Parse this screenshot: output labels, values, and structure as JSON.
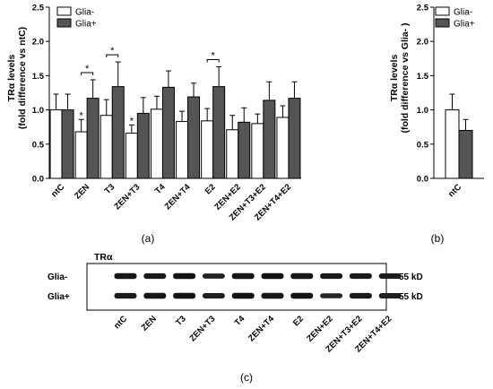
{
  "chart_data": [
    {
      "type": "bar",
      "panel": "(a)",
      "ylabel_line1": "TRα levels",
      "ylabel_line2": "(fold difference vs ntC)",
      "ylim": [
        0,
        2.5
      ],
      "yticks": [
        "0.0",
        "0.5",
        "1.0",
        "1.5",
        "2.0",
        "2.5"
      ],
      "ytick_values": [
        0,
        0.5,
        1.0,
        1.5,
        2.0,
        2.5
      ],
      "categories": [
        "ntC",
        "ZEN",
        "T3",
        "ZEN+T3",
        "T4",
        "ZEN+T4",
        "E2",
        "ZEN+E2",
        "ZEN+T3+E2",
        "ZEN+T4+E2"
      ],
      "legend": {
        "position": "top-left"
      },
      "series": [
        {
          "name": "Glia-",
          "color": "#ffffff",
          "values": [
            1.0,
            0.68,
            0.92,
            0.66,
            1.01,
            0.83,
            0.84,
            0.71,
            0.8,
            0.89
          ],
          "errors": [
            0.23,
            0.18,
            0.23,
            0.12,
            0.19,
            0.15,
            0.18,
            0.21,
            0.14,
            0.17
          ]
        },
        {
          "name": "Glia+",
          "color": "#555555",
          "values": [
            1.0,
            1.17,
            1.34,
            0.95,
            1.33,
            1.19,
            1.34,
            0.82,
            1.14,
            1.17
          ],
          "errors": [
            0.23,
            0.27,
            0.36,
            0.23,
            0.24,
            0.2,
            0.29,
            0.21,
            0.27,
            0.24
          ]
        }
      ],
      "single_asterisks": [
        1,
        3
      ],
      "significance_brackets": [
        {
          "category": 1,
          "label": "*"
        },
        {
          "category": 2,
          "label": "*"
        },
        {
          "category": 6,
          "label": "*"
        }
      ]
    },
    {
      "type": "bar",
      "panel": "(b)",
      "ylabel_line1": "TRα levels",
      "ylabel_line2": "(fold difference vs Glia- )",
      "ylim": [
        0,
        2.5
      ],
      "yticks": [
        "0.0",
        "0.5",
        "1.0",
        "1.5",
        "2.0",
        "2.5"
      ],
      "ytick_values": [
        0,
        0.5,
        1.0,
        1.5,
        2.0,
        2.5
      ],
      "categories": [
        "ntC"
      ],
      "legend": {
        "position": "top-right"
      },
      "series": [
        {
          "name": "Glia-",
          "color": "#ffffff",
          "values": [
            1.0
          ],
          "errors": [
            0.23
          ]
        },
        {
          "name": "Glia+",
          "color": "#555555",
          "values": [
            0.7
          ],
          "errors": [
            0.16
          ]
        }
      ]
    }
  ],
  "blot": {
    "panel": "(c)",
    "title": "TRα",
    "rows": [
      {
        "label": "Glia-",
        "size": "55 kD",
        "intensity": [
          0.85,
          0.8,
          0.9,
          0.7,
          0.85,
          0.9,
          0.85,
          0.8,
          0.8,
          0.78
        ]
      },
      {
        "label": "Glia+",
        "size": "55 kD",
        "intensity": [
          0.8,
          0.85,
          0.88,
          0.75,
          0.88,
          0.85,
          0.88,
          0.65,
          0.8,
          0.75
        ]
      }
    ],
    "lanes": [
      "ntC",
      "ZEN",
      "T3",
      "ZEN+T3",
      "T4",
      "ZEN+T4",
      "E2",
      "ZEN+E2",
      "ZEN+T3+E2",
      "ZEN+T4+E2"
    ]
  }
}
